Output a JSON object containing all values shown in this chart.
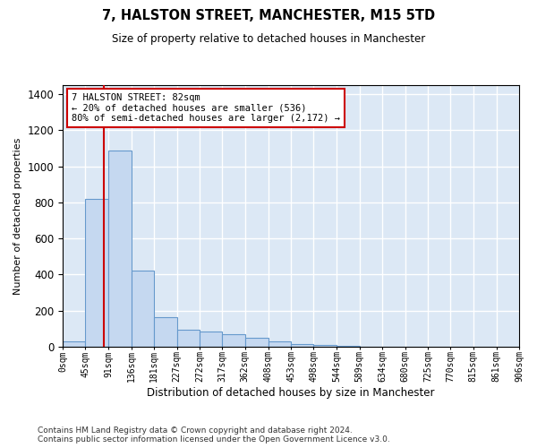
{
  "title": "7, HALSTON STREET, MANCHESTER, M15 5TD",
  "subtitle": "Size of property relative to detached houses in Manchester",
  "xlabel": "Distribution of detached houses by size in Manchester",
  "ylabel": "Number of detached properties",
  "bar_color": "#c5d8f0",
  "bar_edge_color": "#6699cc",
  "bg_color": "#dce8f5",
  "grid_color": "#ffffff",
  "annotation_box_color": "#cc0000",
  "property_sqm": 82,
  "property_line_color": "#cc0000",
  "annotation_line1": "7 HALSTON STREET: 82sqm",
  "annotation_line2": "← 20% of detached houses are smaller (536)",
  "annotation_line3": "80% of semi-detached houses are larger (2,172) →",
  "bin_edges": [
    0,
    45,
    91,
    136,
    181,
    227,
    272,
    317,
    362,
    408,
    453,
    498,
    544,
    589,
    634,
    680,
    725,
    770,
    815,
    861,
    906
  ],
  "bar_heights": [
    28,
    820,
    1090,
    420,
    165,
    95,
    85,
    68,
    50,
    28,
    15,
    8,
    3,
    2,
    1,
    1,
    0,
    0,
    0,
    0
  ],
  "ylim": [
    0,
    1450
  ],
  "yticks": [
    0,
    200,
    400,
    600,
    800,
    1000,
    1200,
    1400
  ],
  "footer_line1": "Contains HM Land Registry data © Crown copyright and database right 2024.",
  "footer_line2": "Contains public sector information licensed under the Open Government Licence v3.0."
}
